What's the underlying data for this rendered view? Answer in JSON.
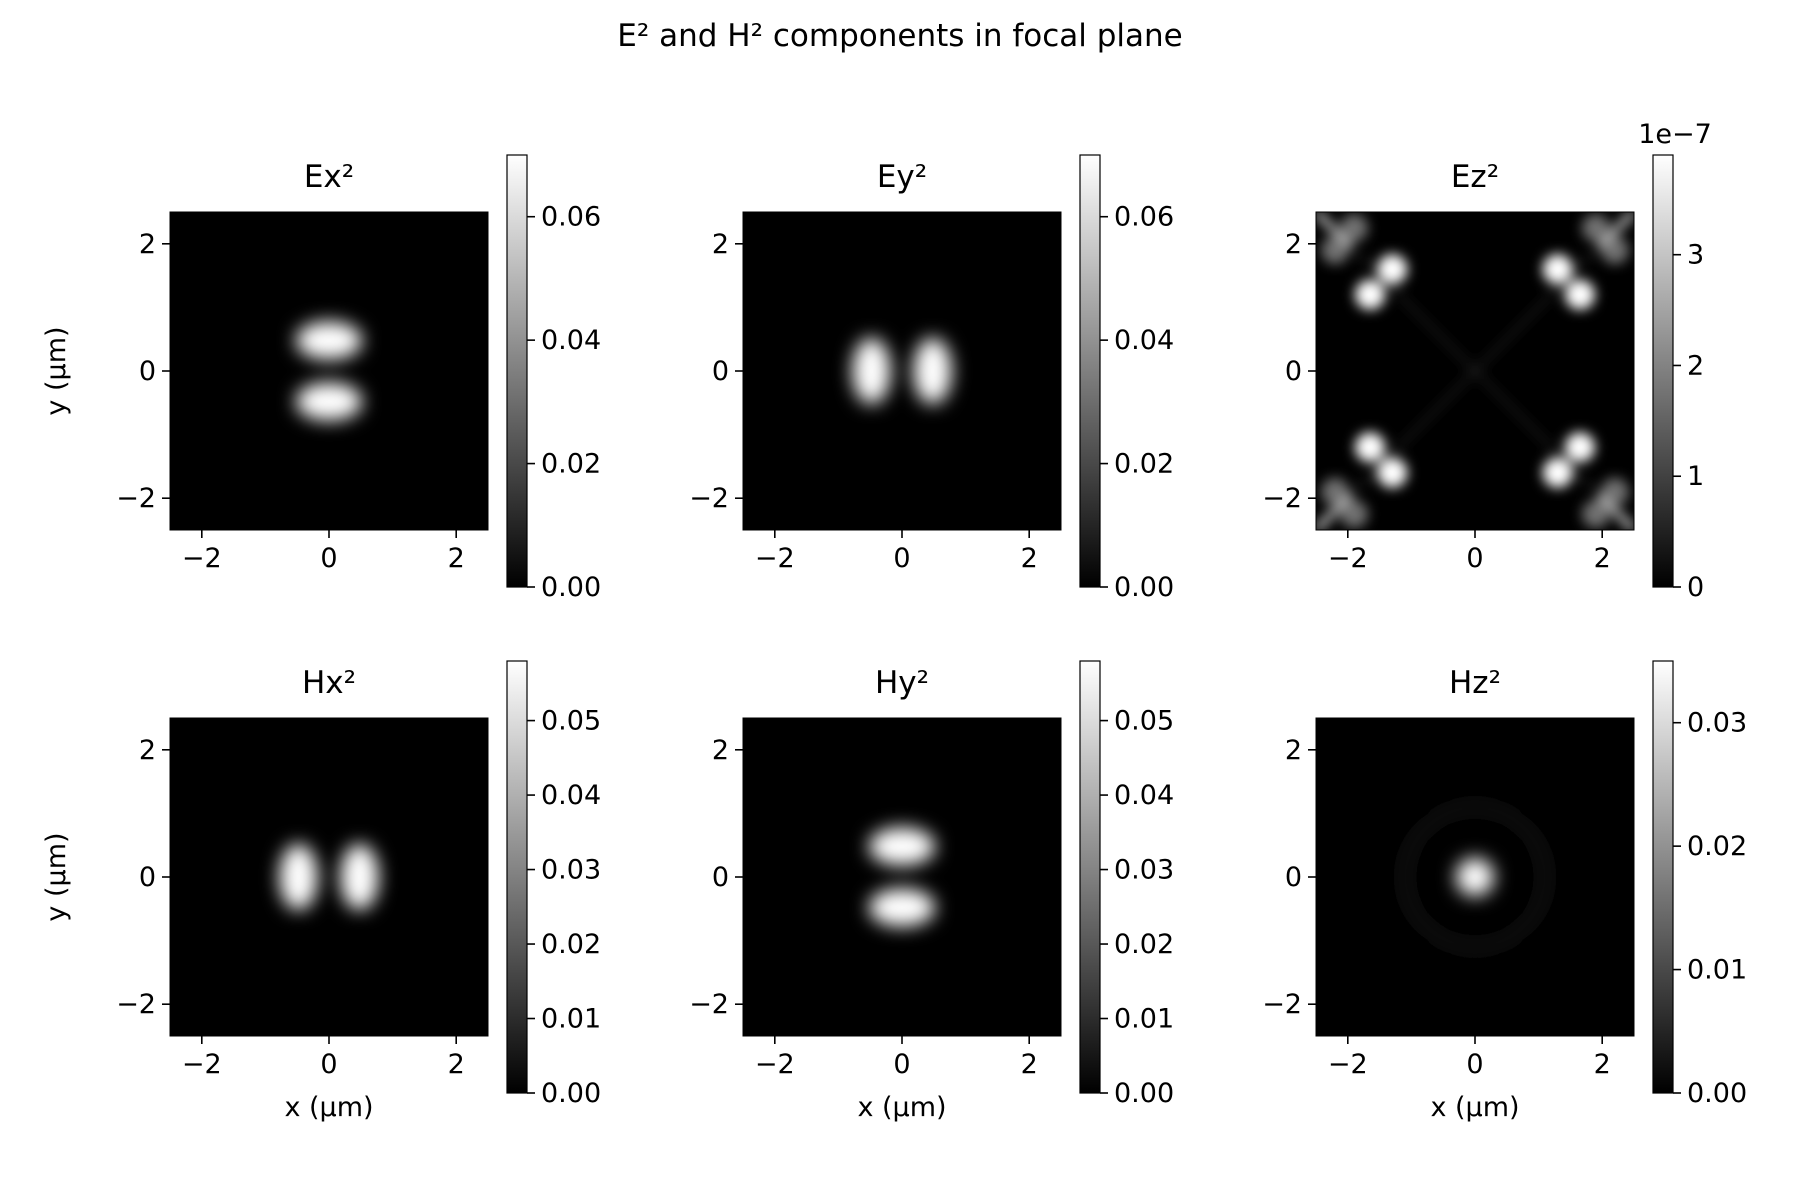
{
  "figure": {
    "title": "E² and H² components in focal plane"
  },
  "chart_data": [
    {
      "type": "heatmap",
      "title": "Ex²",
      "xlabel": "",
      "ylabel": "y (µm)",
      "xlim": [
        -2.5,
        2.5
      ],
      "ylim": [
        -2.5,
        2.5
      ],
      "xticks": [
        -2,
        0,
        2
      ],
      "yticks": [
        -2,
        0,
        2
      ],
      "colormap": "gray",
      "colorbar": {
        "range": [
          0,
          0.07
        ],
        "ticks": [
          0.0,
          0.02,
          0.04,
          0.06
        ],
        "tick_labels": [
          "0.00",
          "0.02",
          "0.04",
          "0.06"
        ],
        "offset_text": ""
      },
      "pattern": "two horizontal lobes",
      "features": [
        {
          "x": 0,
          "y": 0.48,
          "peak": 0.07
        },
        {
          "x": 0,
          "y": -0.48,
          "peak": 0.07
        }
      ]
    },
    {
      "type": "heatmap",
      "title": "Ey²",
      "xlabel": "",
      "ylabel": "",
      "xlim": [
        -2.5,
        2.5
      ],
      "ylim": [
        -2.5,
        2.5
      ],
      "xticks": [
        -2,
        0,
        2
      ],
      "yticks": [
        -2,
        0,
        2
      ],
      "colormap": "gray",
      "colorbar": {
        "range": [
          0,
          0.07
        ],
        "ticks": [
          0.0,
          0.02,
          0.04,
          0.06
        ],
        "tick_labels": [
          "0.00",
          "0.02",
          "0.04",
          "0.06"
        ],
        "offset_text": ""
      },
      "pattern": "two vertical lobes",
      "features": [
        {
          "x": -0.48,
          "y": 0,
          "peak": 0.07
        },
        {
          "x": 0.48,
          "y": 0,
          "peak": 0.07
        }
      ]
    },
    {
      "type": "heatmap",
      "title": "Ez²",
      "xlabel": "",
      "ylabel": "",
      "xlim": [
        -2.5,
        2.5
      ],
      "ylim": [
        -2.5,
        2.5
      ],
      "xticks": [
        -2,
        0,
        2
      ],
      "yticks": [
        -2,
        0,
        2
      ],
      "colormap": "gray",
      "colorbar": {
        "range": [
          0,
          3.9
        ],
        "ticks": [
          0,
          1,
          2,
          3
        ],
        "tick_labels": [
          "0",
          "1",
          "2",
          "3"
        ],
        "offset_text": "1e−7"
      },
      "pattern": "diagonal corner artifacts",
      "features": [
        {
          "x": -1.3,
          "y": 1.6,
          "peak": 3.9
        },
        {
          "x": -1.65,
          "y": 1.2,
          "peak": 3.9
        },
        {
          "x": 1.3,
          "y": 1.6,
          "peak": 3.9
        },
        {
          "x": 1.65,
          "y": 1.2,
          "peak": 3.9
        },
        {
          "x": -1.65,
          "y": -1.2,
          "peak": 3.9
        },
        {
          "x": -1.3,
          "y": -1.6,
          "peak": 3.9
        },
        {
          "x": 1.65,
          "y": -1.2,
          "peak": 3.9
        },
        {
          "x": 1.3,
          "y": -1.6,
          "peak": 3.9
        }
      ]
    },
    {
      "type": "heatmap",
      "title": "Hx²",
      "xlabel": "x (µm)",
      "ylabel": "y (µm)",
      "xlim": [
        -2.5,
        2.5
      ],
      "ylim": [
        -2.5,
        2.5
      ],
      "xticks": [
        -2,
        0,
        2
      ],
      "yticks": [
        -2,
        0,
        2
      ],
      "colormap": "gray",
      "colorbar": {
        "range": [
          0,
          0.058
        ],
        "ticks": [
          0.0,
          0.01,
          0.02,
          0.03,
          0.04,
          0.05
        ],
        "tick_labels": [
          "0.00",
          "0.01",
          "0.02",
          "0.03",
          "0.04",
          "0.05"
        ],
        "offset_text": ""
      },
      "pattern": "two vertical lobes",
      "features": [
        {
          "x": -0.48,
          "y": 0,
          "peak": 0.058
        },
        {
          "x": 0.48,
          "y": 0,
          "peak": 0.058
        }
      ]
    },
    {
      "type": "heatmap",
      "title": "Hy²",
      "xlabel": "x (µm)",
      "ylabel": "",
      "xlim": [
        -2.5,
        2.5
      ],
      "ylim": [
        -2.5,
        2.5
      ],
      "xticks": [
        -2,
        0,
        2
      ],
      "yticks": [
        -2,
        0,
        2
      ],
      "colormap": "gray",
      "colorbar": {
        "range": [
          0,
          0.058
        ],
        "ticks": [
          0.0,
          0.01,
          0.02,
          0.03,
          0.04,
          0.05
        ],
        "tick_labels": [
          "0.00",
          "0.01",
          "0.02",
          "0.03",
          "0.04",
          "0.05"
        ],
        "offset_text": ""
      },
      "pattern": "two horizontal lobes",
      "features": [
        {
          "x": 0,
          "y": 0.48,
          "peak": 0.058
        },
        {
          "x": 0,
          "y": -0.48,
          "peak": 0.058
        }
      ]
    },
    {
      "type": "heatmap",
      "title": "Hz²",
      "xlabel": "x (µm)",
      "ylabel": "",
      "xlim": [
        -2.5,
        2.5
      ],
      "ylim": [
        -2.5,
        2.5
      ],
      "xticks": [
        -2,
        0,
        2
      ],
      "yticks": [
        -2,
        0,
        2
      ],
      "colormap": "gray",
      "colorbar": {
        "range": [
          0,
          0.035
        ],
        "ticks": [
          0.0,
          0.01,
          0.02,
          0.03
        ],
        "tick_labels": [
          "0.00",
          "0.01",
          "0.02",
          "0.03"
        ],
        "offset_text": ""
      },
      "pattern": "central spot with faint ring",
      "features": [
        {
          "x": 0,
          "y": 0,
          "peak": 0.035
        }
      ]
    }
  ]
}
